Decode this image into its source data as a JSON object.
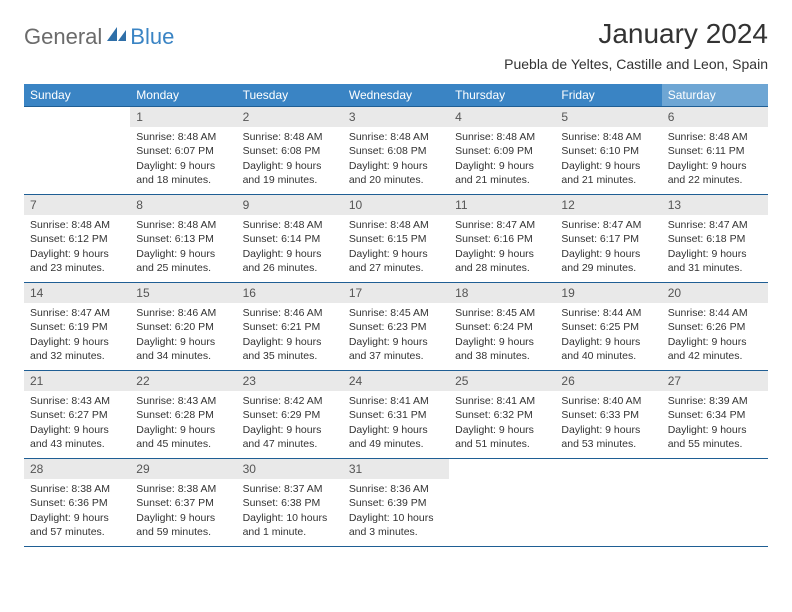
{
  "brand": {
    "word1": "General",
    "word2": "Blue",
    "icon_name": "sail-icon",
    "icon_color": "#2f6fa8"
  },
  "heading": {
    "month_year": "January 2024",
    "location": "Puebla de Yeltes, Castille and Leon, Spain"
  },
  "styles": {
    "header_bg": "#3a84c4",
    "header_bg_sat": "#6ea6d4",
    "header_text": "#ffffff",
    "row_border": "#1f5e94",
    "daynum_bg": "#e9e9e9",
    "body_text": "#333333",
    "logo_gray": "#6b6b6b",
    "logo_blue": "#3a84c4"
  },
  "daynames": [
    "Sunday",
    "Monday",
    "Tuesday",
    "Wednesday",
    "Thursday",
    "Friday",
    "Saturday"
  ],
  "weeks": [
    [
      {
        "n": "",
        "l": [
          "",
          "",
          "",
          ""
        ]
      },
      {
        "n": "1",
        "l": [
          "Sunrise: 8:48 AM",
          "Sunset: 6:07 PM",
          "Daylight: 9 hours",
          "and 18 minutes."
        ]
      },
      {
        "n": "2",
        "l": [
          "Sunrise: 8:48 AM",
          "Sunset: 6:08 PM",
          "Daylight: 9 hours",
          "and 19 minutes."
        ]
      },
      {
        "n": "3",
        "l": [
          "Sunrise: 8:48 AM",
          "Sunset: 6:08 PM",
          "Daylight: 9 hours",
          "and 20 minutes."
        ]
      },
      {
        "n": "4",
        "l": [
          "Sunrise: 8:48 AM",
          "Sunset: 6:09 PM",
          "Daylight: 9 hours",
          "and 21 minutes."
        ]
      },
      {
        "n": "5",
        "l": [
          "Sunrise: 8:48 AM",
          "Sunset: 6:10 PM",
          "Daylight: 9 hours",
          "and 21 minutes."
        ]
      },
      {
        "n": "6",
        "l": [
          "Sunrise: 8:48 AM",
          "Sunset: 6:11 PM",
          "Daylight: 9 hours",
          "and 22 minutes."
        ]
      }
    ],
    [
      {
        "n": "7",
        "l": [
          "Sunrise: 8:48 AM",
          "Sunset: 6:12 PM",
          "Daylight: 9 hours",
          "and 23 minutes."
        ]
      },
      {
        "n": "8",
        "l": [
          "Sunrise: 8:48 AM",
          "Sunset: 6:13 PM",
          "Daylight: 9 hours",
          "and 25 minutes."
        ]
      },
      {
        "n": "9",
        "l": [
          "Sunrise: 8:48 AM",
          "Sunset: 6:14 PM",
          "Daylight: 9 hours",
          "and 26 minutes."
        ]
      },
      {
        "n": "10",
        "l": [
          "Sunrise: 8:48 AM",
          "Sunset: 6:15 PM",
          "Daylight: 9 hours",
          "and 27 minutes."
        ]
      },
      {
        "n": "11",
        "l": [
          "Sunrise: 8:47 AM",
          "Sunset: 6:16 PM",
          "Daylight: 9 hours",
          "and 28 minutes."
        ]
      },
      {
        "n": "12",
        "l": [
          "Sunrise: 8:47 AM",
          "Sunset: 6:17 PM",
          "Daylight: 9 hours",
          "and 29 minutes."
        ]
      },
      {
        "n": "13",
        "l": [
          "Sunrise: 8:47 AM",
          "Sunset: 6:18 PM",
          "Daylight: 9 hours",
          "and 31 minutes."
        ]
      }
    ],
    [
      {
        "n": "14",
        "l": [
          "Sunrise: 8:47 AM",
          "Sunset: 6:19 PM",
          "Daylight: 9 hours",
          "and 32 minutes."
        ]
      },
      {
        "n": "15",
        "l": [
          "Sunrise: 8:46 AM",
          "Sunset: 6:20 PM",
          "Daylight: 9 hours",
          "and 34 minutes."
        ]
      },
      {
        "n": "16",
        "l": [
          "Sunrise: 8:46 AM",
          "Sunset: 6:21 PM",
          "Daylight: 9 hours",
          "and 35 minutes."
        ]
      },
      {
        "n": "17",
        "l": [
          "Sunrise: 8:45 AM",
          "Sunset: 6:23 PM",
          "Daylight: 9 hours",
          "and 37 minutes."
        ]
      },
      {
        "n": "18",
        "l": [
          "Sunrise: 8:45 AM",
          "Sunset: 6:24 PM",
          "Daylight: 9 hours",
          "and 38 minutes."
        ]
      },
      {
        "n": "19",
        "l": [
          "Sunrise: 8:44 AM",
          "Sunset: 6:25 PM",
          "Daylight: 9 hours",
          "and 40 minutes."
        ]
      },
      {
        "n": "20",
        "l": [
          "Sunrise: 8:44 AM",
          "Sunset: 6:26 PM",
          "Daylight: 9 hours",
          "and 42 minutes."
        ]
      }
    ],
    [
      {
        "n": "21",
        "l": [
          "Sunrise: 8:43 AM",
          "Sunset: 6:27 PM",
          "Daylight: 9 hours",
          "and 43 minutes."
        ]
      },
      {
        "n": "22",
        "l": [
          "Sunrise: 8:43 AM",
          "Sunset: 6:28 PM",
          "Daylight: 9 hours",
          "and 45 minutes."
        ]
      },
      {
        "n": "23",
        "l": [
          "Sunrise: 8:42 AM",
          "Sunset: 6:29 PM",
          "Daylight: 9 hours",
          "and 47 minutes."
        ]
      },
      {
        "n": "24",
        "l": [
          "Sunrise: 8:41 AM",
          "Sunset: 6:31 PM",
          "Daylight: 9 hours",
          "and 49 minutes."
        ]
      },
      {
        "n": "25",
        "l": [
          "Sunrise: 8:41 AM",
          "Sunset: 6:32 PM",
          "Daylight: 9 hours",
          "and 51 minutes."
        ]
      },
      {
        "n": "26",
        "l": [
          "Sunrise: 8:40 AM",
          "Sunset: 6:33 PM",
          "Daylight: 9 hours",
          "and 53 minutes."
        ]
      },
      {
        "n": "27",
        "l": [
          "Sunrise: 8:39 AM",
          "Sunset: 6:34 PM",
          "Daylight: 9 hours",
          "and 55 minutes."
        ]
      }
    ],
    [
      {
        "n": "28",
        "l": [
          "Sunrise: 8:38 AM",
          "Sunset: 6:36 PM",
          "Daylight: 9 hours",
          "and 57 minutes."
        ]
      },
      {
        "n": "29",
        "l": [
          "Sunrise: 8:38 AM",
          "Sunset: 6:37 PM",
          "Daylight: 9 hours",
          "and 59 minutes."
        ]
      },
      {
        "n": "30",
        "l": [
          "Sunrise: 8:37 AM",
          "Sunset: 6:38 PM",
          "Daylight: 10 hours",
          "and 1 minute."
        ]
      },
      {
        "n": "31",
        "l": [
          "Sunrise: 8:36 AM",
          "Sunset: 6:39 PM",
          "Daylight: 10 hours",
          "and 3 minutes."
        ]
      },
      {
        "n": "",
        "l": [
          "",
          "",
          "",
          ""
        ]
      },
      {
        "n": "",
        "l": [
          "",
          "",
          "",
          ""
        ]
      },
      {
        "n": "",
        "l": [
          "",
          "",
          "",
          ""
        ]
      }
    ]
  ]
}
